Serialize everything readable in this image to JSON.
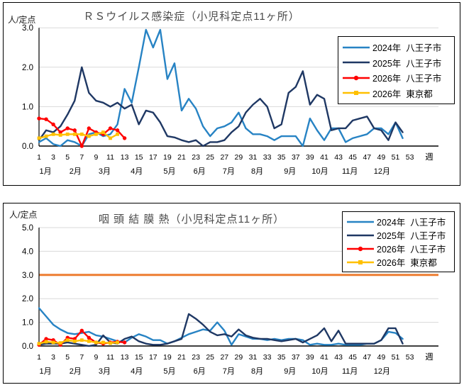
{
  "colors": {
    "blue_2024": "#2783C4",
    "navy_2025": "#1F3864",
    "red_2026": "#FF0000",
    "yellow_2026_tokyo": "#FFC000",
    "alert_orange": "#ED7D31",
    "gridline": "#D9D9D9",
    "axis": "#000000"
  },
  "chart_data": [
    {
      "type": "line",
      "title": "ＲＳウイルス感染症（小児科定点11ヶ所）",
      "ylabel": "人/定点",
      "xlabel": "週",
      "ylim": [
        0,
        3.0
      ],
      "yticks": [
        "0.0",
        "1.0",
        "2.0",
        "3.0"
      ],
      "x_range": [
        1,
        53
      ],
      "x_ticks": [
        1,
        3,
        5,
        7,
        9,
        11,
        13,
        15,
        17,
        19,
        21,
        23,
        25,
        27,
        29,
        31,
        33,
        35,
        37,
        39,
        41,
        43,
        45,
        47,
        49,
        51,
        53
      ],
      "grid": true,
      "legend_position": "top-right",
      "months": [
        {
          "label": "1月",
          "week": 1.9
        },
        {
          "label": "2月",
          "week": 6.1
        },
        {
          "label": "3月",
          "week": 10.2
        },
        {
          "label": "4月",
          "week": 14.7
        },
        {
          "label": "5月",
          "week": 19.3
        },
        {
          "label": "6月",
          "week": 23.5
        },
        {
          "label": "7月",
          "week": 27.6
        },
        {
          "label": "8月",
          "week": 31.6
        },
        {
          "label": "9月",
          "week": 36.2
        },
        {
          "label": "10月",
          "week": 40.4
        },
        {
          "label": "11月",
          "week": 44.6
        },
        {
          "label": "12月",
          "week": 49.1
        }
      ],
      "series": [
        {
          "key": "2024-hachioji",
          "name": "2024年  八王子市",
          "color": "#2783C4",
          "marker": "none",
          "start_week": 1,
          "values": [
            0.1,
            0.2,
            0.05,
            0.0,
            0.15,
            0.1,
            0.0,
            0.3,
            0.35,
            0.25,
            0.3,
            0.55,
            1.45,
            1.1,
            2.0,
            2.95,
            2.5,
            2.95,
            1.7,
            2.1,
            0.9,
            1.2,
            0.95,
            0.5,
            0.25,
            0.45,
            0.5,
            0.6,
            0.85,
            0.45,
            0.3,
            0.3,
            0.25,
            0.15,
            0.25,
            0.25,
            0.25,
            0.0,
            0.7,
            0.4,
            0.15,
            0.45,
            0.45,
            0.1,
            0.2,
            0.25,
            0.3,
            0.45,
            0.45,
            0.3,
            0.6,
            0.2
          ]
        },
        {
          "key": "2025-hachioji",
          "name": "2025年  八王子市",
          "color": "#1F3864",
          "marker": "none",
          "start_week": 1,
          "values": [
            0.15,
            0.4,
            0.35,
            0.5,
            0.8,
            1.15,
            2.0,
            1.35,
            1.15,
            1.1,
            1.0,
            1.1,
            0.95,
            1.05,
            0.55,
            0.9,
            0.85,
            0.6,
            0.25,
            0.22,
            0.15,
            0.1,
            0.15,
            0.0,
            0.1,
            0.1,
            0.15,
            0.35,
            0.5,
            0.85,
            1.05,
            1.2,
            1.0,
            0.45,
            0.55,
            1.35,
            1.5,
            1.9,
            1.05,
            1.3,
            1.2,
            0.4,
            0.45,
            0.45,
            0.65,
            0.7,
            0.75,
            0.45,
            0.4,
            0.15,
            0.6,
            0.35
          ]
        },
        {
          "key": "2026-hachioji",
          "name": "2026年  八王子市",
          "color": "#FF0000",
          "marker": "circle",
          "start_week": 1,
          "values": [
            0.7,
            0.68,
            0.55,
            0.35,
            0.45,
            0.4,
            0.0,
            0.45,
            0.35,
            0.3,
            0.45,
            0.4,
            0.2
          ]
        },
        {
          "key": "2026-tokyo",
          "name": "2026年  東京都",
          "color": "#FFC000",
          "marker": "square",
          "start_week": 1,
          "values": [
            0.2,
            0.25,
            0.3,
            0.28,
            0.3,
            0.3,
            0.3,
            0.25,
            0.3,
            0.35,
            0.2,
            0.3
          ]
        }
      ]
    },
    {
      "type": "line",
      "title": "咽 頭 結 膜 熱（小児科定点11ヶ所）",
      "ylabel": "人/定点",
      "xlabel": "週",
      "ylim": [
        0,
        5.0
      ],
      "yticks": [
        "0.0",
        "1.0",
        "2.0",
        "3.0",
        "4.0",
        "5.0"
      ],
      "x_range": [
        1,
        53
      ],
      "x_ticks": [
        1,
        3,
        5,
        7,
        9,
        11,
        13,
        15,
        17,
        19,
        21,
        23,
        25,
        27,
        29,
        31,
        33,
        35,
        37,
        39,
        41,
        43,
        45,
        47,
        49,
        51,
        53
      ],
      "grid": true,
      "legend_position": "top-right",
      "threshold": {
        "value": 3.0,
        "color": "#ED7D31",
        "meaning": "alert-level-line"
      },
      "months": [
        {
          "label": "1月",
          "week": 1.9
        },
        {
          "label": "2月",
          "week": 6.1
        },
        {
          "label": "3月",
          "week": 10.2
        },
        {
          "label": "4月",
          "week": 14.7
        },
        {
          "label": "5月",
          "week": 19.3
        },
        {
          "label": "6月",
          "week": 23.5
        },
        {
          "label": "7月",
          "week": 27.6
        },
        {
          "label": "8月",
          "week": 31.6
        },
        {
          "label": "9月",
          "week": 36.2
        },
        {
          "label": "10月",
          "week": 40.4
        },
        {
          "label": "11月",
          "week": 44.6
        },
        {
          "label": "12月",
          "week": 49.1
        }
      ],
      "series": [
        {
          "key": "2024-hachioji",
          "name": "2024年  八王子市",
          "color": "#2783C4",
          "marker": "none",
          "start_week": 1,
          "values": [
            1.6,
            1.25,
            0.9,
            0.7,
            0.55,
            0.5,
            0.55,
            0.6,
            0.45,
            0.4,
            0.3,
            0.2,
            0.15,
            0.35,
            0.5,
            0.4,
            0.25,
            0.25,
            0.1,
            0.2,
            0.35,
            0.5,
            0.6,
            0.7,
            0.65,
            1.0,
            0.65,
            0.05,
            0.5,
            0.4,
            0.3,
            0.3,
            0.25,
            0.3,
            0.25,
            0.3,
            0.3,
            0.25,
            0.05,
            0.1,
            0.05,
            0.05,
            0.1,
            0.05,
            0.05,
            0.05,
            0.1,
            0.1,
            0.25,
            0.6,
            0.55,
            0.3
          ]
        },
        {
          "key": "2025-hachioji",
          "name": "2025年  八王子市",
          "color": "#1F3864",
          "marker": "none",
          "start_week": 1,
          "values": [
            0.05,
            0.1,
            0.1,
            0.1,
            0.15,
            0.1,
            0.05,
            0.0,
            0.05,
            0.45,
            0.15,
            0.1,
            0.3,
            0.4,
            0.2,
            0.1,
            0.05,
            0.05,
            0.1,
            0.2,
            0.3,
            1.35,
            1.15,
            0.9,
            0.6,
            0.45,
            0.5,
            0.4,
            0.7,
            0.45,
            0.35,
            0.3,
            0.3,
            0.25,
            0.2,
            0.25,
            0.3,
            0.15,
            0.3,
            0.45,
            0.75,
            0.2,
            0.65,
            0.1,
            0.1,
            0.1,
            0.1,
            0.1,
            0.25,
            0.75,
            0.75,
            0.1
          ]
        },
        {
          "key": "2026-hachioji",
          "name": "2026年  八王子市",
          "color": "#FF0000",
          "marker": "circle",
          "start_week": 1,
          "values": [
            0.05,
            0.3,
            0.25,
            0.05,
            0.35,
            0.3,
            0.65,
            0.35,
            0.15,
            0.1,
            0.15,
            0.18,
            0.15
          ]
        },
        {
          "key": "2026-tokyo",
          "name": "2026年  東京都",
          "color": "#FFC000",
          "marker": "square",
          "start_week": 1,
          "values": [
            0.1,
            0.18,
            0.15,
            0.13,
            0.25,
            0.2,
            0.25,
            0.2,
            0.15,
            0.15,
            0.12,
            0.15
          ]
        }
      ]
    }
  ]
}
